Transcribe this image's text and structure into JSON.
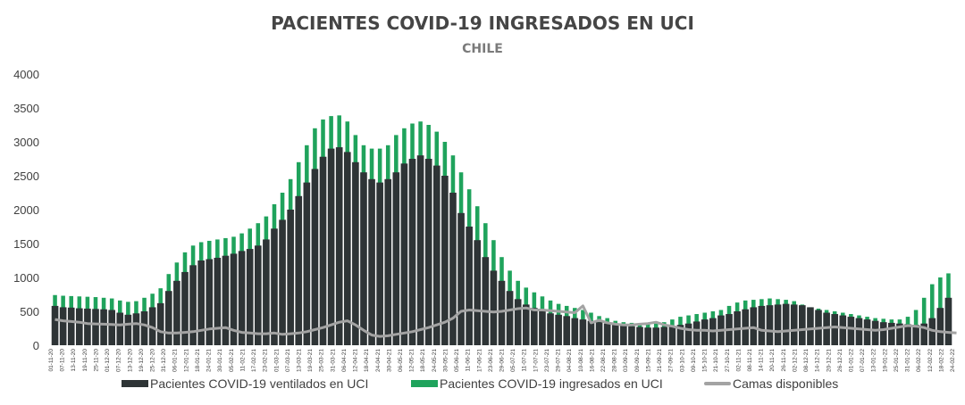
{
  "title": "PACIENTES COVID-19 INGRESADOS EN UCI",
  "subtitle": "CHILE",
  "colors": {
    "ventilated": "#2e3436",
    "icu": "#1fa35c",
    "beds": "#a3a3a3",
    "axis_text": "#404040",
    "title": "#454545"
  },
  "legend": {
    "ventilated": "Pacientes COVID-19 ventilados en UCI",
    "icu": "Pacientes COVID-19 ingresados en UCI",
    "beds": "Camas disponibles"
  },
  "chart_data": {
    "type": "bar",
    "ylim": [
      0,
      4000
    ],
    "y_ticks": [
      0,
      500,
      1000,
      1500,
      2000,
      2500,
      3000,
      3500,
      4000
    ],
    "grid": false,
    "legend_position": "bottom",
    "x_start": "01-11-20",
    "x_end": "24-02-22",
    "x_tick_labels": [
      "01-11-20",
      "07-11-20",
      "13-11-20",
      "19-11-20",
      "25-11-20",
      "01-12-20",
      "07-12-20",
      "13-12-20",
      "19-12-20",
      "25-12-20",
      "31-12-20",
      "06-01-21",
      "12-01-21",
      "18-01-21",
      "24-01-21",
      "30-01-21",
      "05-02-21",
      "11-02-21",
      "17-02-21",
      "23-02-21",
      "01-03-21",
      "07-03-21",
      "13-03-21",
      "19-03-21",
      "25-03-21",
      "31-03-21",
      "06-04-21",
      "12-04-21",
      "18-04-21",
      "24-04-21",
      "30-04-21",
      "06-05-21",
      "12-05-21",
      "18-05-21",
      "24-05-21",
      "30-05-21",
      "05-06-21",
      "11-06-21",
      "17-06-21",
      "23-06-21",
      "29-06-21",
      "05-07-21",
      "11-07-21",
      "17-07-21",
      "23-07-21",
      "29-07-21",
      "04-08-21",
      "10-08-21",
      "16-08-21",
      "22-08-21",
      "28-08-21",
      "03-09-21",
      "09-09-21",
      "15-09-21",
      "21-09-21",
      "27-09-21",
      "03-10-21",
      "09-10-21",
      "15-10-21",
      "21-10-21",
      "27-10-21",
      "02-11-21",
      "08-11-21",
      "14-11-21",
      "20-11-21",
      "26-11-21",
      "02-12-21",
      "08-12-21",
      "14-12-21",
      "20-12-21",
      "26-12-21",
      "01-01-22",
      "07-01-22",
      "13-01-22",
      "19-01-22",
      "25-01-22",
      "31-01-22",
      "06-02-22",
      "12-02-22",
      "18-02-22",
      "24-02-22"
    ],
    "series": [
      {
        "name": "Pacientes COVID-19 ventilados en UCI",
        "kind": "bar",
        "values": [
          580,
          560,
          555,
          545,
          540,
          535,
          530,
          520,
          480,
          450,
          470,
          500,
          560,
          620,
          800,
          950,
          1080,
          1180,
          1250,
          1270,
          1290,
          1320,
          1350,
          1390,
          1420,
          1470,
          1560,
          1720,
          1850,
          2000,
          2200,
          2400,
          2600,
          2780,
          2900,
          2920,
          2850,
          2700,
          2550,
          2450,
          2400,
          2450,
          2550,
          2680,
          2750,
          2800,
          2750,
          2650,
          2500,
          2250,
          1950,
          1750,
          1550,
          1300,
          1100,
          950,
          800,
          680,
          600,
          550,
          500,
          470,
          450,
          430,
          400,
          380,
          360,
          340,
          320,
          300,
          290,
          280,
          270,
          260,
          260,
          270,
          280,
          300,
          320,
          350,
          380,
          400,
          440,
          460,
          500,
          530,
          560,
          580,
          590,
          600,
          610,
          600,
          590,
          560,
          520,
          480,
          460,
          440,
          420,
          400,
          380,
          360,
          340,
          330,
          320,
          310,
          300,
          320,
          400,
          550,
          700,
          800,
          850
        ]
      },
      {
        "name": "Pacientes COVID-19 ingresados en UCI",
        "kind": "bar",
        "values": [
          740,
          730,
          725,
          720,
          715,
          710,
          700,
          690,
          660,
          640,
          650,
          700,
          760,
          840,
          1050,
          1220,
          1370,
          1470,
          1520,
          1540,
          1560,
          1580,
          1600,
          1650,
          1720,
          1800,
          1900,
          2080,
          2250,
          2450,
          2700,
          2950,
          3200,
          3330,
          3380,
          3390,
          3300,
          3100,
          2950,
          2900,
          2900,
          2950,
          3100,
          3200,
          3270,
          3300,
          3250,
          3150,
          3000,
          2800,
          2550,
          2300,
          2050,
          1800,
          1550,
          1300,
          1100,
          950,
          850,
          780,
          720,
          660,
          610,
          580,
          550,
          520,
          480,
          430,
          400,
          360,
          340,
          330,
          320,
          320,
          320,
          340,
          380,
          420,
          440,
          460,
          480,
          500,
          520,
          580,
          630,
          660,
          670,
          680,
          690,
          680,
          670,
          650,
          600,
          560,
          540,
          520,
          500,
          480,
          460,
          440,
          420,
          400,
          390,
          380,
          380,
          420,
          520,
          700,
          900,
          1000,
          1060
        ]
      },
      {
        "name": "Camas disponibles",
        "kind": "line",
        "values": [
          380,
          360,
          350,
          340,
          320,
          315,
          310,
          305,
          300,
          310,
          320,
          300,
          260,
          200,
          180,
          180,
          190,
          200,
          220,
          240,
          250,
          260,
          220,
          190,
          180,
          170,
          170,
          180,
          160,
          170,
          180,
          200,
          230,
          260,
          300,
          340,
          360,
          300,
          220,
          150,
          130,
          140,
          160,
          180,
          200,
          230,
          260,
          300,
          340,
          400,
          500,
          520,
          510,
          500,
          490,
          500,
          520,
          540,
          550,
          520,
          520,
          510,
          500,
          490,
          480,
          580,
          330,
          370,
          330,
          310,
          300,
          300,
          310,
          320,
          340,
          300,
          280,
          250,
          230,
          220,
          220,
          210,
          220,
          230,
          240,
          250,
          260,
          220,
          210,
          200,
          210,
          220,
          230,
          240,
          250,
          260,
          270,
          260,
          250,
          240,
          230,
          220,
          230,
          250,
          270,
          290,
          280,
          260,
          220,
          200,
          190,
          180
        ]
      }
    ]
  }
}
